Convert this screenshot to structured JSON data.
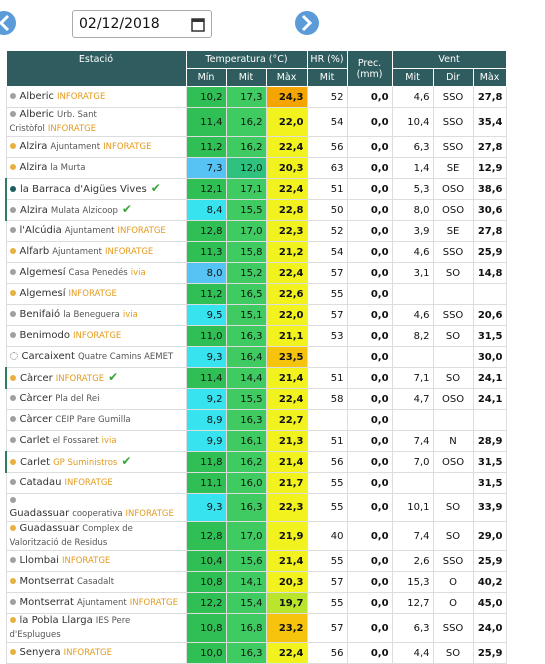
{
  "header": {
    "date": "02/12/2018"
  },
  "table": {
    "columns": {
      "station": "Estació",
      "temperature": "Temperatura (°C)",
      "temp_min": "Mín",
      "temp_mit": "Mit",
      "temp_max": "Màx",
      "hr": "HR (%)",
      "hr_mit": "Mit",
      "prec": "Prec. (mm)",
      "wind": "Vent",
      "wind_mit": "Mit",
      "wind_dir": "Dir",
      "wind_max": "Màx"
    },
    "rows": [
      {
        "dot": "#a0a0a0",
        "name": "Alberic",
        "tag": "INFORATGE",
        "min": "10,2",
        "mit": "17,3",
        "max": "24,3",
        "hr": "52",
        "prec": "0,0",
        "wind_mit": "4,6",
        "wind_dir": "SSO",
        "wind_max": "27,8"
      },
      {
        "dot": "#a0a0a0",
        "name": "Alberic",
        "detail": "Urb. Sant Cristòfol",
        "tag": "INFORATGE",
        "min": "11,4",
        "mit": "16,2",
        "max": "22,0",
        "hr": "54",
        "prec": "0,0",
        "wind_mit": "10,4",
        "wind_dir": "SSO",
        "wind_max": "35,4"
      },
      {
        "dot": "#e8b040",
        "name": "Alzira",
        "detail": "Ajuntament",
        "tag": "INFORATGE",
        "min": "11,2",
        "mit": "16,2",
        "max": "22,4",
        "hr": "56",
        "prec": "0,0",
        "wind_mit": "6,3",
        "wind_dir": "SSO",
        "wind_max": "27,8"
      },
      {
        "dot": "#e8b040",
        "name": "Alzira",
        "detail": "la Murta",
        "min": "7,3",
        "mit": "12,0",
        "max": "20,3",
        "hr": "63",
        "prec": "0,0",
        "wind_mit": "1,4",
        "wind_dir": "SE",
        "wind_max": "12,9"
      },
      {
        "dot": "#1f5e5e",
        "name": "la Barraca d'Aigües Vives",
        "check": true,
        "min": "12,1",
        "mit": "17,1",
        "max": "22,4",
        "hr": "51",
        "prec": "0,0",
        "wind_mit": "5,3",
        "wind_dir": "OSO",
        "wind_max": "38,6"
      },
      {
        "dot": "#a0a0a0",
        "name": "Alzira",
        "detail": "Mulata Alzicoop",
        "check": true,
        "min": "8,4",
        "mit": "15,5",
        "max": "22,8",
        "hr": "50",
        "prec": "0,0",
        "wind_mit": "8,0",
        "wind_dir": "OSO",
        "wind_max": "30,6"
      },
      {
        "dot": "#a0a0a0",
        "name": "l'Alcúdia",
        "detail": "Ajuntament",
        "tag": "INFORATGE",
        "min": "12,8",
        "mit": "17,0",
        "max": "22,3",
        "hr": "52",
        "prec": "0,0",
        "wind_mit": "3,9",
        "wind_dir": "SE",
        "wind_max": "27,8"
      },
      {
        "dot": "#e8b040",
        "name": "Alfarb",
        "detail": "Ajuntament",
        "tag": "INFORATGE",
        "min": "11,3",
        "mit": "15,8",
        "max": "21,2",
        "hr": "54",
        "prec": "0,0",
        "wind_mit": "4,6",
        "wind_dir": "SSO",
        "wind_max": "25,9"
      },
      {
        "dot": "#a0a0a0",
        "name": "Algemesí",
        "detail": "Casa Penedés",
        "tag": "ivia",
        "min": "8,0",
        "mit": "15,2",
        "max": "22,4",
        "hr": "57",
        "prec": "0,0",
        "wind_mit": "3,1",
        "wind_dir": "SO",
        "wind_max": "14,8"
      },
      {
        "dot": "#e8b040",
        "name": "Algemesí",
        "tag": "INFORATGE",
        "min": "11,2",
        "mit": "16,5",
        "max": "22,6",
        "hr": "55",
        "prec": "0,0"
      },
      {
        "dot": "#a0a0a0",
        "name": "Benifaió",
        "detail": "la Beneguera",
        "tag": "ivia",
        "min": "9,5",
        "mit": "15,1",
        "max": "22,0",
        "hr": "57",
        "prec": "0,0",
        "wind_mit": "4,6",
        "wind_dir": "SSO",
        "wind_max": "20,6"
      },
      {
        "dot": "#a0a0a0",
        "name": "Benimodo",
        "tag": "INFORATGE",
        "min": "11,0",
        "mit": "16,3",
        "max": "21,1",
        "hr": "53",
        "prec": "0,0",
        "wind_mit": "8,2",
        "wind_dir": "SO",
        "wind_max": "31,5"
      },
      {
        "dot": "none",
        "name": "Carcaixent",
        "detail": "Quatre Camins AEMET",
        "min": "9,3",
        "mit": "16,4",
        "max": "23,5",
        "prec": "0,0",
        "wind_max": "30,0"
      },
      {
        "dot": "#e8b040",
        "name": "Càrcer",
        "tag": "INFORATGE",
        "check": true,
        "min": "11,4",
        "mit": "14,4",
        "max": "21,4",
        "hr": "51",
        "prec": "0,0",
        "wind_mit": "7,1",
        "wind_dir": "SO",
        "wind_max": "24,1"
      },
      {
        "dot": "#a0a0a0",
        "name": "Càrcer",
        "detail": "Pla del Rei",
        "min": "9,2",
        "mit": "15,5",
        "max": "22,4",
        "hr": "58",
        "prec": "0,0",
        "wind_mit": "4,7",
        "wind_dir": "OSO",
        "wind_max": "24,1"
      },
      {
        "dot": "#a0a0a0",
        "name": "Càrcer",
        "detail": "CEIP Pare Gumilla",
        "min": "8,9",
        "mit": "16,3",
        "max": "22,7",
        "prec": "0,0"
      },
      {
        "dot": "#a0a0a0",
        "name": "Carlet",
        "detail": "el Fossaret",
        "tag": "ivia",
        "min": "9,9",
        "mit": "16,1",
        "max": "21,3",
        "hr": "51",
        "prec": "0,0",
        "wind_mit": "7,4",
        "wind_dir": "N",
        "wind_max": "28,9"
      },
      {
        "dot": "#e8b040",
        "name": "Carlet",
        "tag": "GP Suministros",
        "check": true,
        "min": "11,8",
        "mit": "16,2",
        "max": "21,4",
        "hr": "56",
        "prec": "0,0",
        "wind_mit": "7,0",
        "wind_dir": "OSO",
        "wind_max": "31,5"
      },
      {
        "dot": "#a0a0a0",
        "name": "Catadau",
        "tag": "INFORATGE",
        "min": "11,1",
        "mit": "16,0",
        "max": "21,7",
        "hr": "55",
        "prec": "0,0",
        "wind_max": "31,5"
      },
      {
        "dot": "#a0a0a0",
        "name": "Guadassuar",
        "detail": "cooperativa",
        "tag": "INFORATGE",
        "min": "9,3",
        "mit": "16,3",
        "max": "22,3",
        "hr": "55",
        "prec": "0,0",
        "wind_mit": "10,1",
        "wind_dir": "SO",
        "wind_max": "33,9"
      },
      {
        "dot": "#e8b040",
        "name": "Guadassuar",
        "detail": "Complex de Valorització de Residus",
        "min": "12,8",
        "mit": "17,0",
        "max": "21,9",
        "hr": "40",
        "prec": "0,0",
        "wind_mit": "7,4",
        "wind_dir": "SO",
        "wind_max": "29,0"
      },
      {
        "dot": "#a0a0a0",
        "name": "Llombai",
        "tag": "INFORATGE",
        "min": "10,4",
        "mit": "15,6",
        "max": "21,4",
        "hr": "55",
        "prec": "0,0",
        "wind_mit": "2,6",
        "wind_dir": "SSO",
        "wind_max": "25,9"
      },
      {
        "dot": "#e8b040",
        "name": "Montserrat",
        "detail": "Casadalt",
        "min": "10,8",
        "mit": "14,1",
        "max": "20,3",
        "hr": "57",
        "prec": "0,0",
        "wind_mit": "15,3",
        "wind_dir": "O",
        "wind_max": "40,2"
      },
      {
        "dot": "#a0a0a0",
        "name": "Montserrat",
        "detail": "Ajuntament",
        "tag": "INFORATGE",
        "min": "12,2",
        "mit": "15,4",
        "max": "19,7",
        "hr": "55",
        "prec": "0,0",
        "wind_mit": "12,7",
        "wind_dir": "O",
        "wind_max": "45,0"
      },
      {
        "dot": "#e8b040",
        "name": "la Pobla Llarga",
        "detail": "IES Pere d'Esplugues",
        "min": "10,8",
        "mit": "16,8",
        "max": "23,2",
        "hr": "57",
        "prec": "0,0",
        "wind_mit": "6,3",
        "wind_dir": "SSO",
        "wind_max": "24,0"
      },
      {
        "dot": "#e8b040",
        "name": "Senyera",
        "tag": "INFORATGE",
        "min": "10,0",
        "mit": "16,3",
        "max": "22,4",
        "hr": "56",
        "prec": "0,0",
        "wind_mit": "4,4",
        "wind_dir": "SO",
        "wind_max": "25,9"
      }
    ]
  }
}
